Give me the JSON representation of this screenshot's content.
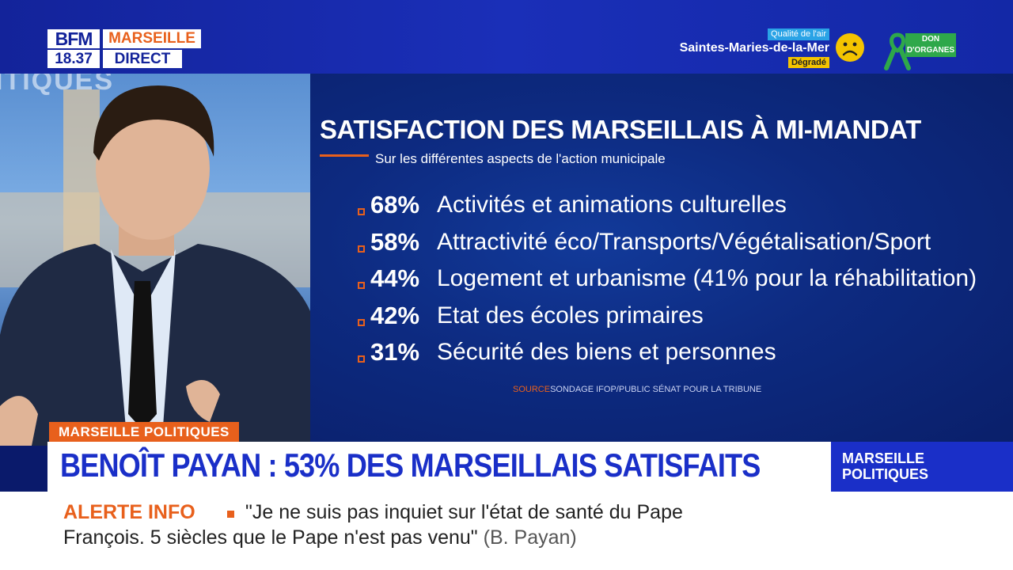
{
  "channel": {
    "logo_text": "BFM",
    "time": "18.37",
    "region": "MARSEILLE",
    "live_label": "DIRECT"
  },
  "air_quality": {
    "label": "Qualité de l'air",
    "city": "Saintes-Maries-de-la-Mer",
    "status": "Dégradé",
    "icon": "sad-face-icon",
    "color": "#f4c400"
  },
  "organ_donation": {
    "icon": "green-ribbon-icon",
    "label_line1": "DON",
    "label_line2": "D'ORGANES",
    "color": "#2ea84a"
  },
  "studio": {
    "background_text": "ITIQUES"
  },
  "infographic": {
    "title": "SATISFACTION DES MARSEILLAIS À MI-MANDAT",
    "subtitle": "Sur les différentes aspects de l'action municipale",
    "items": [
      {
        "percent": "68%",
        "label": "Activités et animations culturelles"
      },
      {
        "percent": "58%",
        "label": "Attractivité éco/Transports/Végétalisation/Sport"
      },
      {
        "percent": "44%",
        "label": "Logement et urbanisme (41% pour la réhabilitation)"
      },
      {
        "percent": "42%",
        "label": "Etat des écoles primaires"
      },
      {
        "percent": "31%",
        "label": "Sécurité des biens et personnes"
      }
    ],
    "source_key": "SOURCE",
    "source_value": "SONDAGE IFOP/PUBLIC SÉNAT POUR LA TRIBUNE",
    "accent_color": "#e8601c"
  },
  "lower_third": {
    "tag": "MARSEILLE POLITIQUES",
    "headline": "BENOÎT PAYAN : 53% DES MARSEILLAIS SATISFAITS",
    "show_name_line1": "MARSEILLE",
    "show_name_line2": "POLITIQUES",
    "brand_color": "#1a2fc8"
  },
  "ticker": {
    "label": "ALERTE INFO",
    "line1": "\"Je ne suis pas inquiet sur l'état de santé du Pape",
    "line2": "François. 5 siècles que le Pape n'est pas venu\"",
    "attribution": "(B. Payan)"
  }
}
